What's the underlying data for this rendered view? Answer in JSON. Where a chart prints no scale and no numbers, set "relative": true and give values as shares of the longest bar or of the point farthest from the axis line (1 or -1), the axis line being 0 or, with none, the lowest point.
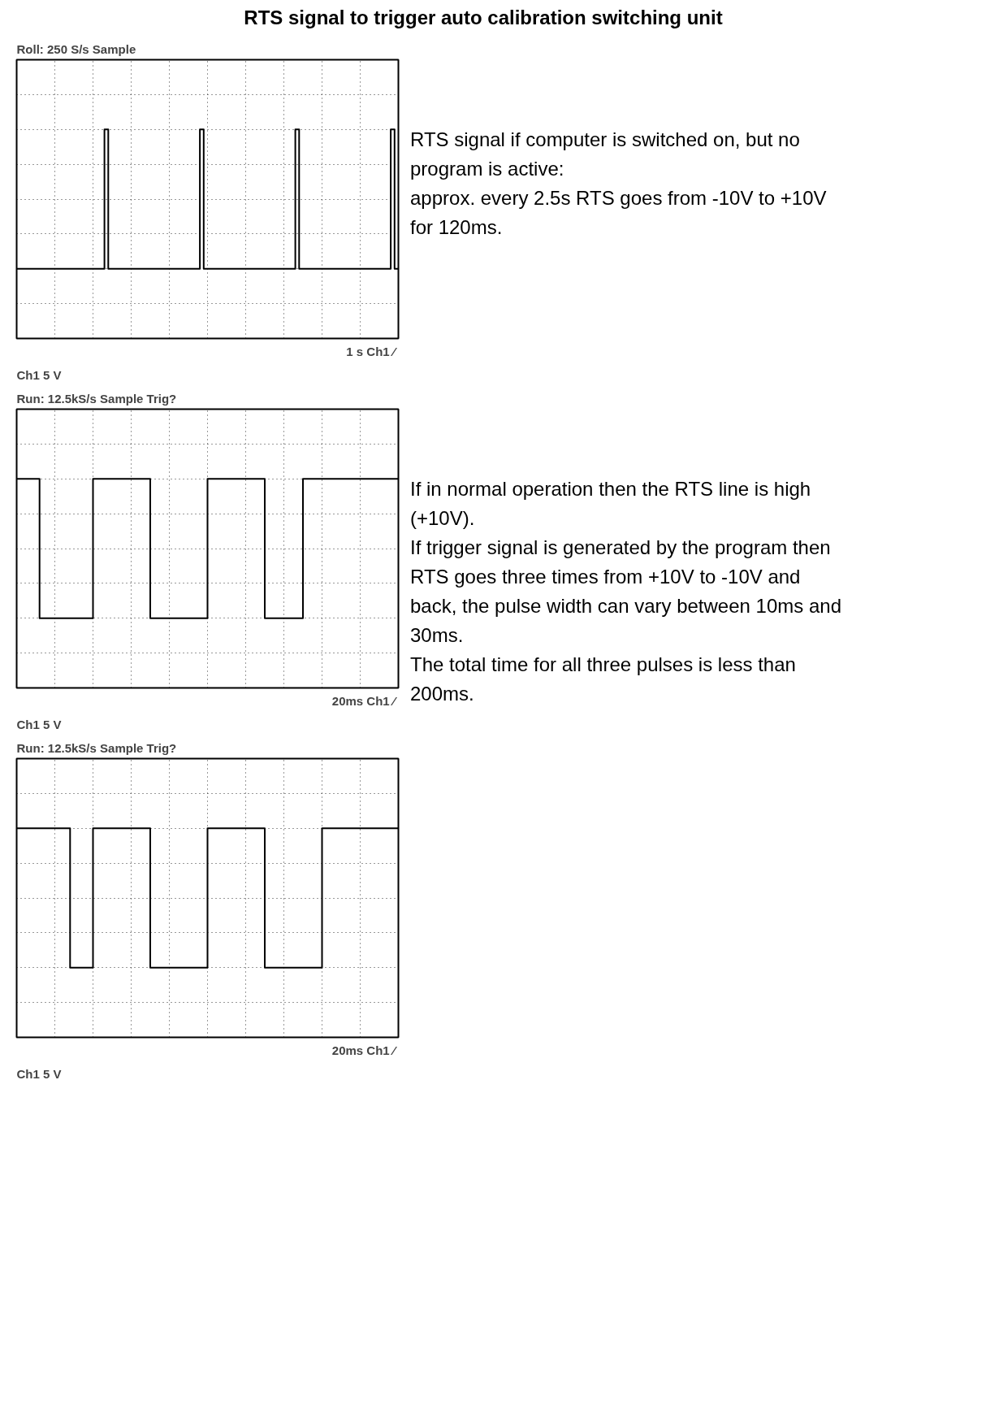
{
  "chart_data": [
    {
      "type": "step",
      "title": "RTS signal to trigger auto calibration switching unit",
      "relative": true,
      "grid": true,
      "annotations": [
        "Roll: 250 S/s  Sample",
        "Ch1   5 V",
        "1 s  Ch1 ⁄",
        "RTS signal if computer is switched on, but no program is active:",
        "approx. every 2.5s RTS goes from -10V to +10V for 120ms."
      ],
      "categories": [
        null,
        null,
        null,
        null,
        null,
        null,
        null,
        null,
        null,
        null,
        null,
        null,
        null,
        null,
        null,
        null,
        null,
        null,
        null,
        null,
        null,
        null,
        null,
        null,
        null,
        null,
        null,
        null,
        null,
        null,
        null,
        null,
        null,
        null,
        null,
        null,
        null,
        null,
        null,
        null,
        null,
        null,
        null,
        null,
        null,
        null,
        null,
        null,
        null,
        null,
        null,
        null,
        null,
        null,
        null,
        null,
        null,
        null,
        null,
        null,
        null,
        null,
        null,
        null,
        null,
        null,
        null,
        null,
        null,
        null,
        null,
        null,
        null,
        null,
        null,
        null,
        null,
        null,
        null,
        null,
        null,
        null,
        null,
        null,
        null,
        null,
        null,
        null,
        null,
        null,
        null,
        null,
        null,
        null,
        null,
        null,
        null,
        null,
        null,
        null,
        null
      ],
      "series": [
        {
          "color": "#000000",
          "values": [
            -1,
            -1,
            -1,
            -1,
            -1,
            -1,
            -1,
            -1,
            -1,
            -1,
            -1,
            -1,
            -1,
            -1,
            -1,
            -1,
            -1,
            -1,
            -1,
            -1,
            -1,
            -1,
            -1,
            1,
            -1,
            -1,
            -1,
            -1,
            -1,
            -1,
            -1,
            -1,
            -1,
            -1,
            -1,
            -1,
            -1,
            -1,
            -1,
            -1,
            -1,
            -1,
            -1,
            -1,
            -1,
            -1,
            -1,
            -1,
            1,
            -1,
            -1,
            -1,
            -1,
            -1,
            -1,
            -1,
            -1,
            -1,
            -1,
            -1,
            -1,
            -1,
            -1,
            -1,
            -1,
            -1,
            -1,
            -1,
            -1,
            -1,
            -1,
            -1,
            -1,
            1,
            -1,
            -1,
            -1,
            -1,
            -1,
            -1,
            -1,
            -1,
            -1,
            -1,
            -1,
            -1,
            -1,
            -1,
            -1,
            -1,
            -1,
            -1,
            -1,
            -1,
            -1,
            -1,
            -1,
            -1,
            1,
            -1,
            -1
          ]
        }
      ]
    },
    {
      "type": "step",
      "relative": true,
      "grid": true,
      "annotations": [
        "Run: 12.5kS/s  Sample   Trig?",
        "Ch1   5 V",
        "20ms  Ch1 ⁄",
        "If in normal operation then the RTS line is high (+10V).",
        "If trigger signal is generated by the program then RTS goes three times from +10V to -10V and back, the pulse width can vary between 10ms and 30ms.",
        "The total time for all three pulses is less than 200ms."
      ],
      "categories": [
        null,
        null,
        null,
        null,
        null,
        null,
        null,
        null,
        null,
        null,
        null,
        null,
        null,
        null,
        null,
        null,
        null,
        null,
        null,
        null,
        null,
        null,
        null,
        null,
        null,
        null,
        null,
        null,
        null,
        null,
        null,
        null,
        null,
        null,
        null,
        null,
        null,
        null,
        null,
        null,
        null,
        null,
        null,
        null,
        null,
        null,
        null,
        null,
        null,
        null,
        null,
        null,
        null,
        null,
        null,
        null,
        null,
        null,
        null,
        null,
        null,
        null,
        null,
        null,
        null,
        null,
        null,
        null,
        null,
        null,
        null,
        null,
        null,
        null,
        null,
        null,
        null,
        null,
        null,
        null,
        null,
        null,
        null,
        null,
        null,
        null,
        null,
        null,
        null,
        null,
        null,
        null,
        null,
        null,
        null,
        null,
        null,
        null,
        null,
        null,
        null
      ],
      "series": [
        {
          "color": "#000000",
          "values": [
            1,
            1,
            1,
            1,
            1,
            1,
            -1,
            -1,
            -1,
            -1,
            -1,
            -1,
            -1,
            -1,
            -1,
            -1,
            -1,
            -1,
            -1,
            -1,
            1,
            1,
            1,
            1,
            1,
            1,
            1,
            1,
            1,
            1,
            1,
            1,
            1,
            1,
            1,
            -1,
            -1,
            -1,
            -1,
            -1,
            -1,
            -1,
            -1,
            -1,
            -1,
            -1,
            -1,
            -1,
            -1,
            -1,
            1,
            1,
            1,
            1,
            1,
            1,
            1,
            1,
            1,
            1,
            1,
            1,
            1,
            1,
            1,
            -1,
            -1,
            -1,
            -1,
            -1,
            -1,
            -1,
            -1,
            -1,
            -1,
            1,
            1,
            1,
            1,
            1,
            1,
            1,
            1,
            1,
            1,
            1,
            1,
            1,
            1,
            1,
            1,
            1,
            1,
            1,
            1,
            1,
            1,
            1,
            1,
            1,
            1
          ]
        }
      ]
    },
    {
      "type": "step",
      "relative": true,
      "grid": true,
      "annotations": [
        "Run: 12.5kS/s  Sample   Trig?",
        "Ch1   5 V",
        "20ms  Ch1 ⁄"
      ],
      "categories": [
        null,
        null,
        null,
        null,
        null,
        null,
        null,
        null,
        null,
        null,
        null,
        null,
        null,
        null,
        null,
        null,
        null,
        null,
        null,
        null,
        null,
        null,
        null,
        null,
        null,
        null,
        null,
        null,
        null,
        null,
        null,
        null,
        null,
        null,
        null,
        null,
        null,
        null,
        null,
        null,
        null,
        null,
        null,
        null,
        null,
        null,
        null,
        null,
        null,
        null,
        null,
        null,
        null,
        null,
        null,
        null,
        null,
        null,
        null,
        null,
        null,
        null,
        null,
        null,
        null,
        null,
        null,
        null,
        null,
        null,
        null,
        null,
        null,
        null,
        null,
        null,
        null,
        null,
        null,
        null,
        null,
        null,
        null,
        null,
        null,
        null,
        null,
        null,
        null,
        null,
        null,
        null,
        null,
        null,
        null,
        null,
        null,
        null,
        null,
        null,
        null
      ],
      "series": [
        {
          "color": "#000000",
          "values": [
            1,
            1,
            1,
            1,
            1,
            1,
            1,
            1,
            1,
            1,
            1,
            1,
            1,
            1,
            -1,
            -1,
            -1,
            -1,
            -1,
            -1,
            1,
            1,
            1,
            1,
            1,
            1,
            1,
            1,
            1,
            1,
            1,
            1,
            1,
            1,
            1,
            -1,
            -1,
            -1,
            -1,
            -1,
            -1,
            -1,
            -1,
            -1,
            -1,
            -1,
            -1,
            -1,
            -1,
            -1,
            1,
            1,
            1,
            1,
            1,
            1,
            1,
            1,
            1,
            1,
            1,
            1,
            1,
            1,
            1,
            -1,
            -1,
            -1,
            -1,
            -1,
            -1,
            -1,
            -1,
            -1,
            -1,
            -1,
            -1,
            -1,
            -1,
            -1,
            1,
            1,
            1,
            1,
            1,
            1,
            1,
            1,
            1,
            1,
            1,
            1,
            1,
            1,
            1,
            1,
            1,
            1,
            1,
            1,
            1
          ]
        }
      ]
    }
  ]
}
